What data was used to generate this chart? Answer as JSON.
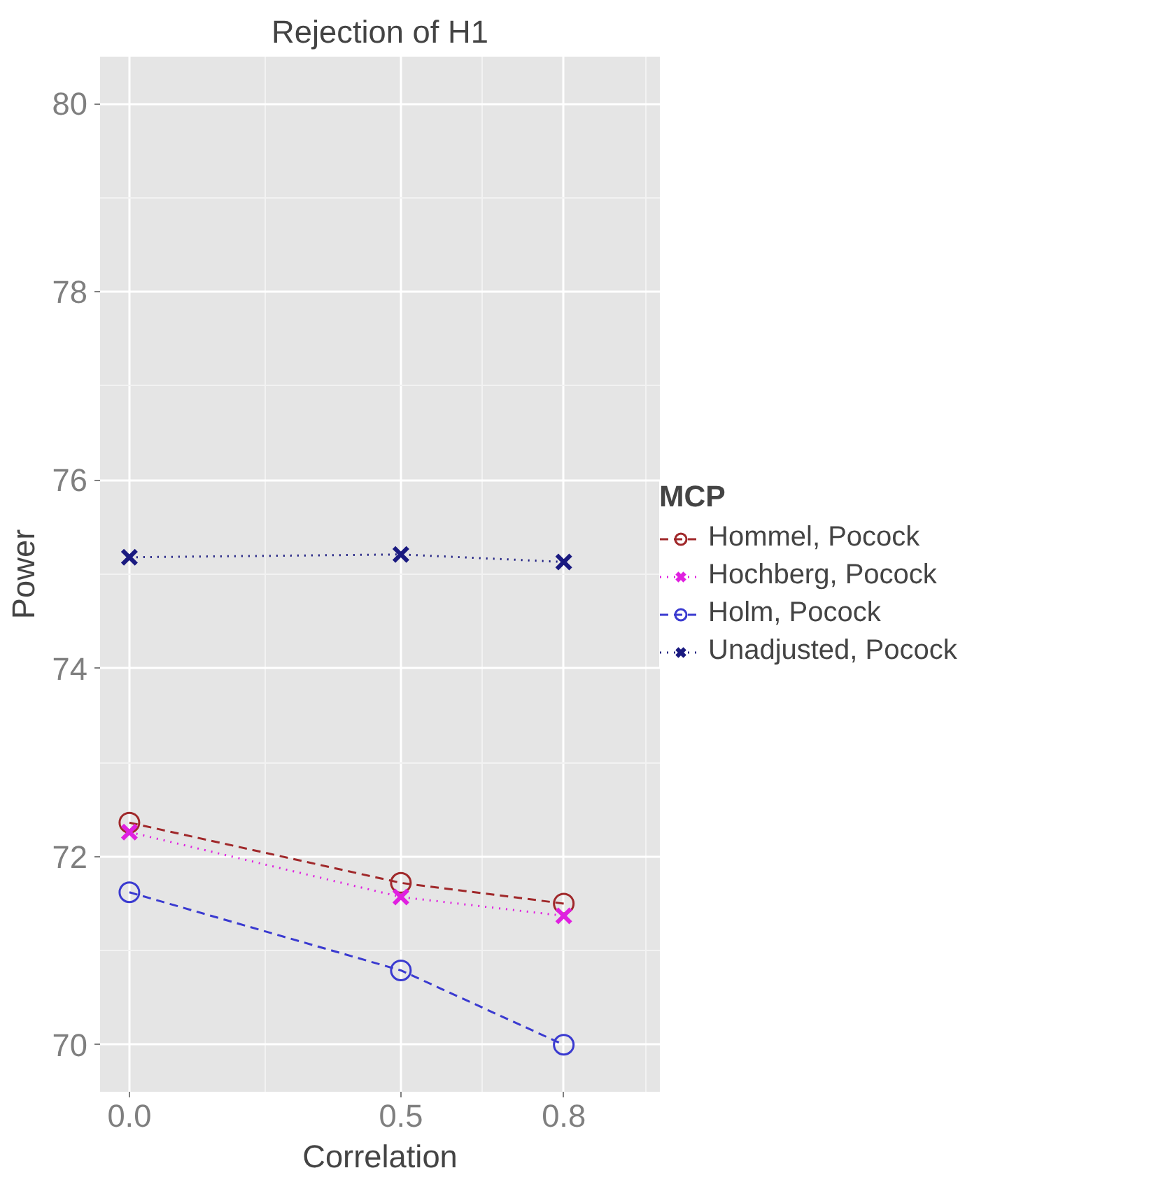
{
  "chart_data": {
    "type": "line",
    "title": "Rejection of H1",
    "xlabel": "Correlation",
    "ylabel": "Power",
    "legend_title": "MCP",
    "x": [
      0,
      0.5,
      0.8
    ],
    "series": [
      {
        "name": "Hommel, Pocock",
        "color": "#a0282a",
        "values": [
          72.36,
          71.72,
          71.5
        ],
        "marker": "circle",
        "line_style": "dashed"
      },
      {
        "name": "Hochberg, Pocock",
        "color": "#e020e0",
        "values": [
          72.26,
          71.57,
          71.37
        ],
        "marker": "cross",
        "line_style": "dotted"
      },
      {
        "name": "Holm, Pocock",
        "color": "#3a3ad0",
        "values": [
          71.62,
          70.79,
          70.0
        ],
        "marker": "circle",
        "line_style": "dashed"
      },
      {
        "name": "Unadjusted, Pocock",
        "color": "#1a1a80",
        "values": [
          75.18,
          75.21,
          75.13
        ],
        "marker": "cross",
        "line_style": "dotted"
      }
    ],
    "xlim": [
      -0.054,
      0.977
    ],
    "ylim": [
      69.5,
      80.5
    ],
    "xticks": [
      {
        "value": 0,
        "label": "0.0"
      },
      0.5,
      0.8
    ],
    "yticks": [
      70,
      72,
      74,
      76,
      78,
      80
    ],
    "grid": true,
    "legend": "right"
  }
}
